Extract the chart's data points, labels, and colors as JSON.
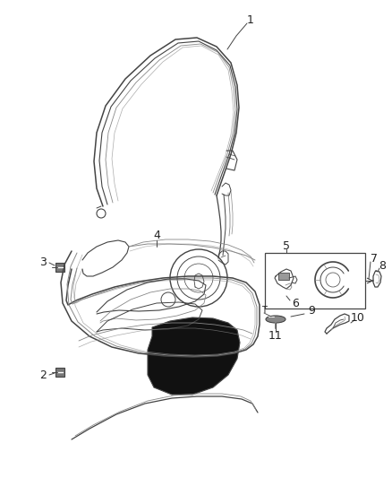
{
  "bg_color": "#ffffff",
  "fig_width": 4.38,
  "fig_height": 5.33,
  "dpi": 100,
  "line_color": "#444444",
  "line_color_light": "#888888"
}
